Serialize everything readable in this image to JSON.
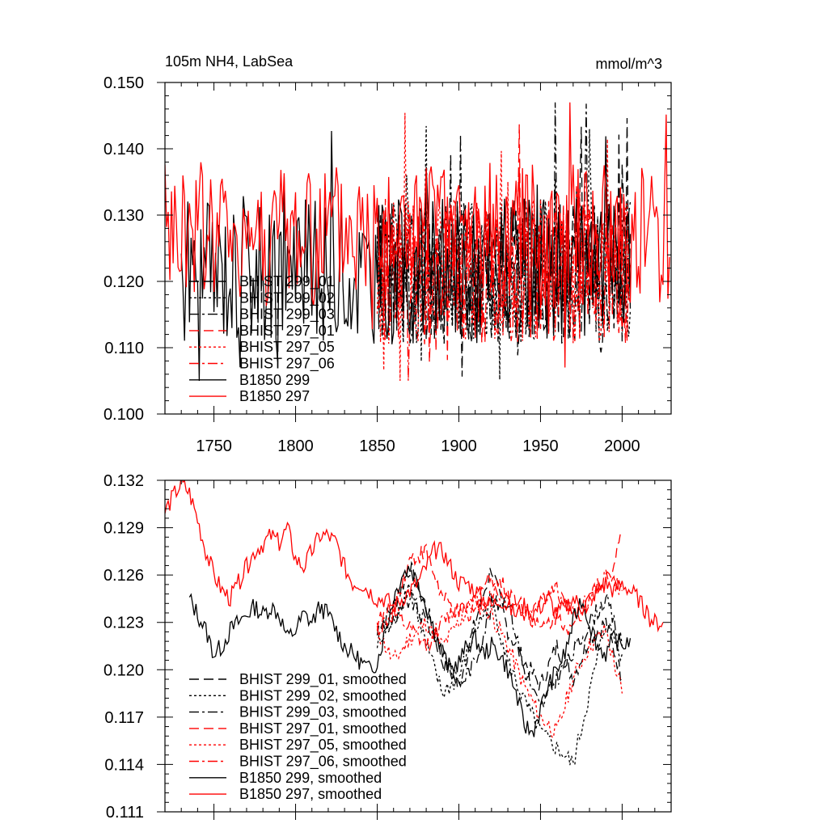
{
  "panels": [
    {
      "id": "raw",
      "title_left": "105m NH4, LabSea",
      "title_right": "mmol/m^3"
    },
    {
      "id": "smoothed",
      "title_left": "",
      "title_right": ""
    }
  ],
  "chart_data": [
    {
      "type": "line",
      "title": "105m NH4, LabSea",
      "units": "mmol/m^3",
      "xlim": [
        1720,
        2030
      ],
      "ylim": [
        0.1,
        0.15
      ],
      "x_ticks": [
        1750,
        1800,
        1850,
        1900,
        1950,
        2000
      ],
      "y_ticks": [
        0.1,
        0.11,
        0.12,
        0.13,
        0.14,
        0.15
      ],
      "y_tick_labels": [
        "0.100",
        "0.110",
        "0.120",
        "0.130",
        "0.140",
        "0.150"
      ],
      "legend_position": "bottom-left",
      "series": [
        {
          "name": "BHIST 299_01",
          "color": "#000000",
          "dash": "dashed",
          "x_range": [
            1850,
            2005
          ],
          "seed": 11,
          "kind": "raw"
        },
        {
          "name": "BHIST 299_02",
          "color": "#000000",
          "dash": "dotted",
          "x_range": [
            1850,
            2005
          ],
          "seed": 12,
          "kind": "raw"
        },
        {
          "name": "BHIST 299_03",
          "color": "#000000",
          "dash": "dashdot",
          "x_range": [
            1850,
            2005
          ],
          "seed": 13,
          "kind": "raw"
        },
        {
          "name": "BHIST 297_01",
          "color": "#ff0000",
          "dash": "dashed",
          "x_range": [
            1850,
            2005
          ],
          "seed": 21,
          "kind": "raw"
        },
        {
          "name": "BHIST 297_05",
          "color": "#ff0000",
          "dash": "dotted",
          "x_range": [
            1850,
            2005
          ],
          "seed": 22,
          "kind": "raw"
        },
        {
          "name": "BHIST 297_06",
          "color": "#ff0000",
          "dash": "dashdot",
          "x_range": [
            1850,
            2005
          ],
          "seed": 23,
          "kind": "raw"
        },
        {
          "name": "B1850 299",
          "color": "#000000",
          "dash": "solid",
          "x_range": [
            1730,
            2005
          ],
          "seed": 31,
          "kind": "raw"
        },
        {
          "name": "B1850 297",
          "color": "#ff0000",
          "dash": "solid",
          "x_range": [
            1720,
            2029
          ],
          "seed": 41,
          "kind": "raw"
        }
      ],
      "notes": "Raw annual series: values fluctuate roughly between 0.105 and 0.147; B1850 297 mean about 0.127, others about 0.122."
    },
    {
      "type": "line",
      "title": "",
      "xlim": [
        1720,
        2030
      ],
      "ylim": [
        0.111,
        0.132
      ],
      "x_ticks": [
        1750,
        1800,
        1850,
        1900,
        1950,
        2000
      ],
      "y_ticks": [
        0.111,
        0.114,
        0.117,
        0.12,
        0.123,
        0.126,
        0.129,
        0.132
      ],
      "y_tick_labels": [
        "0.111",
        "0.114",
        "0.117",
        "0.120",
        "0.123",
        "0.126",
        "0.129",
        "0.132"
      ],
      "legend_position": "bottom-left",
      "series": [
        {
          "name": "BHIST 299_01, smoothed",
          "color": "#000000",
          "dash": "dashed",
          "x": [
            1850,
            1860,
            1870,
            1880,
            1890,
            1900,
            1910,
            1920,
            1930,
            1940,
            1950,
            1960,
            1970,
            1980,
            1990,
            2000
          ],
          "y": [
            0.1225,
            0.124,
            0.1265,
            0.124,
            0.1205,
            0.119,
            0.123,
            0.1265,
            0.1225,
            0.1205,
            0.119,
            0.1215,
            0.1195,
            0.122,
            0.123,
            0.1195
          ]
        },
        {
          "name": "BHIST 299_02, smoothed",
          "color": "#000000",
          "dash": "dotted",
          "x": [
            1850,
            1860,
            1870,
            1880,
            1890,
            1900,
            1910,
            1920,
            1930,
            1940,
            1950,
            1960,
            1970,
            1980,
            1990,
            2000
          ],
          "y": [
            0.1215,
            0.123,
            0.1255,
            0.1215,
            0.1185,
            0.1195,
            0.1225,
            0.1245,
            0.1205,
            0.118,
            0.116,
            0.115,
            0.114,
            0.1185,
            0.123,
            0.121
          ]
        },
        {
          "name": "BHIST 299_03, smoothed",
          "color": "#000000",
          "dash": "dashdot",
          "x": [
            1850,
            1860,
            1870,
            1880,
            1890,
            1900,
            1910,
            1920,
            1930,
            1940,
            1950,
            1960,
            1970,
            1980,
            1990,
            2000
          ],
          "y": [
            0.1225,
            0.123,
            0.1245,
            0.123,
            0.1215,
            0.119,
            0.1205,
            0.124,
            0.1245,
            0.12,
            0.1175,
            0.1195,
            0.121,
            0.123,
            0.1245,
            0.1215
          ]
        },
        {
          "name": "BHIST 297_01, smoothed",
          "color": "#ff0000",
          "dash": "dashed",
          "x": [
            1850,
            1860,
            1870,
            1880,
            1890,
            1900,
            1910,
            1920,
            1930,
            1940,
            1950,
            1960,
            1970,
            1980,
            1990,
            2000
          ],
          "y": [
            0.123,
            0.124,
            0.127,
            0.1275,
            0.1245,
            0.1235,
            0.1245,
            0.126,
            0.125,
            0.124,
            0.1225,
            0.1235,
            0.1225,
            0.1245,
            0.1255,
            0.1285
          ]
        },
        {
          "name": "BHIST 297_05, smoothed",
          "color": "#ff0000",
          "dash": "dotted",
          "x": [
            1850,
            1860,
            1870,
            1880,
            1890,
            1900,
            1910,
            1920,
            1930,
            1940,
            1950,
            1960,
            1970,
            1980,
            1990,
            2000
          ],
          "y": [
            0.1225,
            0.1205,
            0.122,
            0.123,
            0.1215,
            0.123,
            0.1245,
            0.1235,
            0.1215,
            0.119,
            0.117,
            0.116,
            0.1195,
            0.1215,
            0.1225,
            0.1185
          ]
        },
        {
          "name": "BHIST 297_06, smoothed",
          "color": "#ff0000",
          "dash": "dashdot",
          "x": [
            1850,
            1860,
            1870,
            1880,
            1890,
            1900,
            1910,
            1920,
            1930,
            1940,
            1950,
            1960,
            1970,
            1980,
            1990,
            2000
          ],
          "y": [
            0.1225,
            0.1235,
            0.1225,
            0.1215,
            0.123,
            0.124,
            0.1235,
            0.125,
            0.1245,
            0.1235,
            0.1245,
            0.125,
            0.1235,
            0.1245,
            0.126,
            0.125
          ]
        },
        {
          "name": "B1850 299, smoothed",
          "color": "#000000",
          "dash": "solid",
          "x": [
            1735,
            1740,
            1745,
            1750,
            1755,
            1760,
            1765,
            1770,
            1775,
            1780,
            1785,
            1790,
            1795,
            1800,
            1805,
            1810,
            1815,
            1820,
            1825,
            1830,
            1835,
            1840,
            1845,
            1850,
            1855,
            1860,
            1865,
            1870,
            1875,
            1880,
            1885,
            1890,
            1895,
            1900,
            1905,
            1910,
            1915,
            1920,
            1925,
            1930,
            1935,
            1940,
            1945,
            1950,
            1955,
            1960,
            1965,
            1970,
            1975,
            1980,
            1985,
            1990,
            1995,
            2000,
            2005
          ],
          "y": [
            0.1245,
            0.1235,
            0.1225,
            0.121,
            0.1215,
            0.1225,
            0.123,
            0.1235,
            0.124,
            0.1235,
            0.124,
            0.1235,
            0.122,
            0.1225,
            0.1235,
            0.123,
            0.124,
            0.1235,
            0.1225,
            0.1215,
            0.121,
            0.1205,
            0.12,
            0.1205,
            0.1225,
            0.1245,
            0.126,
            0.1265,
            0.1255,
            0.124,
            0.1225,
            0.121,
            0.12,
            0.1205,
            0.1215,
            0.122,
            0.121,
            0.1215,
            0.121,
            0.12,
            0.1185,
            0.1165,
            0.116,
            0.1175,
            0.119,
            0.12,
            0.121,
            0.123,
            0.1245,
            0.123,
            0.1215,
            0.121,
            0.122,
            0.1215,
            0.122
          ]
        },
        {
          "name": "B1850 297, smoothed",
          "color": "#ff0000",
          "dash": "solid",
          "x": [
            1720,
            1725,
            1730,
            1735,
            1740,
            1745,
            1750,
            1755,
            1760,
            1765,
            1770,
            1775,
            1780,
            1785,
            1790,
            1795,
            1800,
            1805,
            1810,
            1815,
            1820,
            1825,
            1830,
            1835,
            1840,
            1845,
            1850,
            1855,
            1860,
            1865,
            1870,
            1875,
            1880,
            1885,
            1890,
            1895,
            1900,
            1905,
            1910,
            1915,
            1920,
            1925,
            1930,
            1935,
            1940,
            1945,
            1950,
            1955,
            1960,
            1965,
            1970,
            1975,
            1980,
            1985,
            1990,
            1995,
            2000,
            2005,
            2010,
            2015,
            2020,
            2025
          ],
          "y": [
            0.13,
            0.131,
            0.1318,
            0.1312,
            0.1295,
            0.1275,
            0.126,
            0.125,
            0.1245,
            0.1255,
            0.1265,
            0.1275,
            0.128,
            0.1285,
            0.128,
            0.129,
            0.127,
            0.1265,
            0.1275,
            0.1285,
            0.1285,
            0.128,
            0.1265,
            0.1255,
            0.1255,
            0.125,
            0.1245,
            0.1245,
            0.124,
            0.1245,
            0.125,
            0.1255,
            0.1265,
            0.1275,
            0.1275,
            0.1265,
            0.1255,
            0.1255,
            0.125,
            0.1245,
            0.124,
            0.1245,
            0.124,
            0.1235,
            0.124,
            0.1235,
            0.124,
            0.1245,
            0.1235,
            0.124,
            0.1245,
            0.124,
            0.1245,
            0.125,
            0.1255,
            0.125,
            0.1255,
            0.125,
            0.1245,
            0.1235,
            0.123,
            0.123
          ]
        }
      ]
    }
  ]
}
